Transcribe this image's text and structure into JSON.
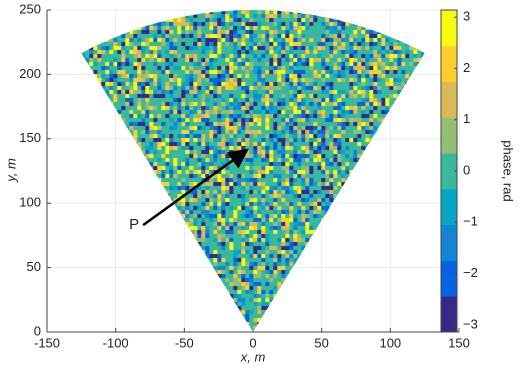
{
  "chart_data": {
    "type": "sector-image",
    "xlabel": "x, m",
    "ylabel": "y, m",
    "xlim": [
      -150,
      150
    ],
    "xticks": [
      -150,
      -100,
      -50,
      0,
      50,
      100,
      150
    ],
    "ylim": [
      0,
      250
    ],
    "yticks": [
      0,
      50,
      100,
      150,
      200,
      250
    ],
    "grid": true,
    "sector": {
      "radius": 250,
      "angles": [
        -30,
        30
      ]
    },
    "colorbar": {
      "label": "phase, rad",
      "lim": [
        -3.14,
        3.14
      ],
      "ticks": [
        {
          "value": -3,
          "label": "−3"
        },
        {
          "value": -2,
          "label": "−2"
        },
        {
          "value": -1,
          "label": "−1"
        },
        0,
        1,
        2,
        3
      ],
      "colormap": [
        "#352a87",
        "#0363e1",
        "#1485d4",
        "#06a7c6",
        "#38b99e",
        "#92bf73",
        "#d9ba56",
        "#fcce2e",
        "#f9fb0e"
      ]
    },
    "annotations": [
      {
        "text": "P",
        "x": -80,
        "y": 83,
        "arrow_x": -6,
        "arrow_y": 140
      }
    ]
  }
}
